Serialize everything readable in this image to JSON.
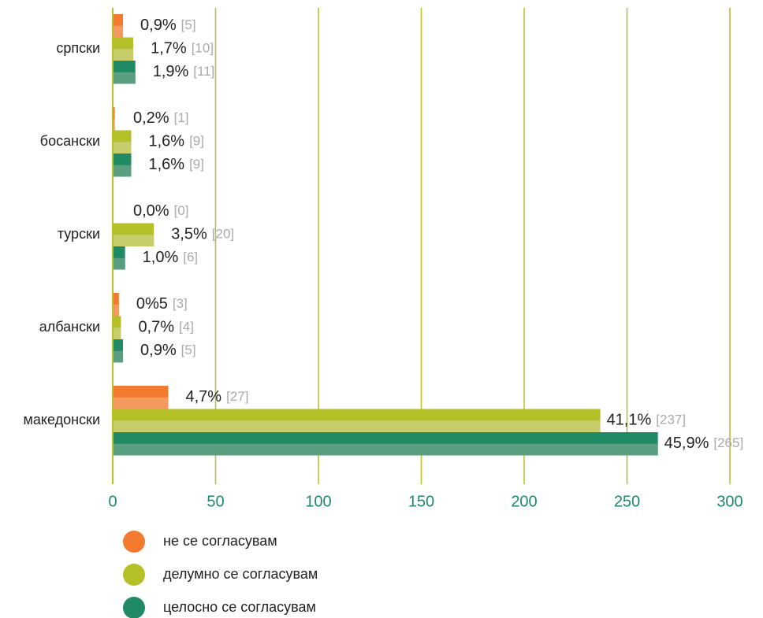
{
  "chart_data": {
    "type": "barh",
    "categories": [
      "српски",
      "босански",
      "турски",
      "албански",
      "македонски"
    ],
    "series": [
      {
        "name": "не се согласувам",
        "color": "#f47a30",
        "values": [
          5,
          1,
          0,
          3,
          27
        ],
        "percent_labels": [
          "0,9%",
          "0,2%",
          "0,0%",
          "0%5",
          "4,7%"
        ],
        "value_labels": [
          "[5]",
          "[1]",
          "[0]",
          "[3]",
          "[27]"
        ]
      },
      {
        "name": "делумно се согласувам",
        "color": "#b5bf28",
        "values": [
          10,
          9,
          20,
          4,
          237
        ],
        "percent_labels": [
          "1,7%",
          "1,6%",
          "3,5%",
          "0,7%",
          "41,1%"
        ],
        "value_labels": [
          "[10]",
          "[9]",
          "[20]",
          "[4]",
          "[237]"
        ]
      },
      {
        "name": "целосно се согласувам",
        "color": "#1f8a63",
        "values": [
          11,
          9,
          6,
          5,
          265
        ],
        "percent_labels": [
          "1,9%",
          "1,6%",
          "1,0%",
          "0,9%",
          "45,9%"
        ],
        "value_labels": [
          "[11]",
          "[9]",
          "[6]",
          "[5]",
          "[265]"
        ]
      }
    ],
    "xlim": [
      0,
      300
    ],
    "xticks": [
      0,
      50,
      100,
      150,
      200,
      250,
      300
    ],
    "grid": true
  }
}
